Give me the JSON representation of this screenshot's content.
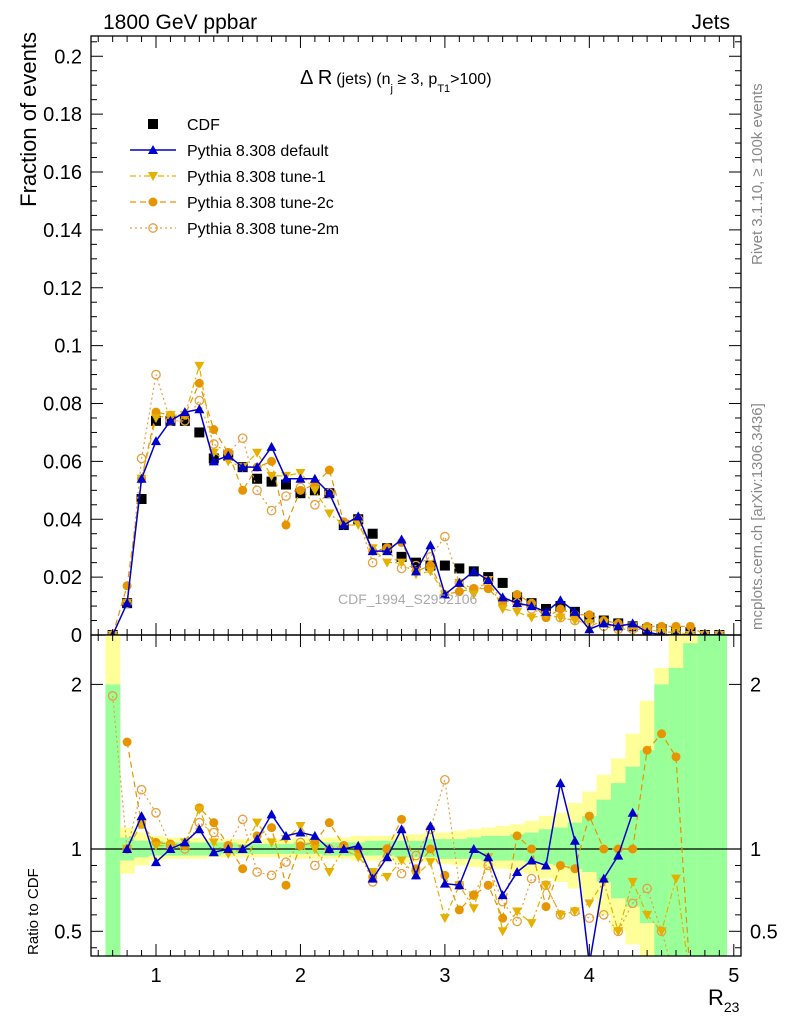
{
  "header": {
    "left": "1800 GeV ppbar",
    "right": "Jets"
  },
  "side_labels": {
    "rivet": "Rivet 3.1.10, ≥ 100k events",
    "mcplots": "mcplots.cern.ch [arXiv:1306.3436]"
  },
  "watermark": "CDF_1994_S2952106",
  "chart_data": {
    "type": "line",
    "title_main": "Δ R",
    "title_rest": "(jets) (n",
    "title_sub_j": "j",
    "title_mid": " ≥ 3, p",
    "title_sub_t": "T1",
    "title_end": ">100)",
    "xlabel_main": "R",
    "xlabel_sub": "23",
    "ylabel_top": "Fraction of events",
    "ylabel_bottom": "Ratio to CDF",
    "xlim": [
      0.55,
      5.05
    ],
    "ylim_top": [
      0,
      0.207
    ],
    "ylim_bottom": [
      0.35,
      2.3
    ],
    "x_ticks": [
      "1",
      "2",
      "3",
      "4",
      "5"
    ],
    "x_tick_values": [
      1,
      2,
      3,
      4,
      5
    ],
    "y_ticks_top": [
      "0",
      "0.02",
      "0.04",
      "0.06",
      "0.08",
      "0.1",
      "0.12",
      "0.14",
      "0.16",
      "0.18",
      "0.2"
    ],
    "y_tick_values_top": [
      0,
      0.02,
      0.04,
      0.06,
      0.08,
      0.1,
      0.12,
      0.14,
      0.16,
      0.18,
      0.2
    ],
    "y_ticks_bottom": [
      "0.5",
      "1",
      "2"
    ],
    "y_tick_values_bottom": [
      0.5,
      1,
      2
    ],
    "x": [
      0.7,
      0.8,
      0.9,
      1.0,
      1.1,
      1.2,
      1.3,
      1.4,
      1.5,
      1.6,
      1.7,
      1.8,
      1.9,
      2.0,
      2.1,
      2.2,
      2.3,
      2.4,
      2.5,
      2.6,
      2.7,
      2.8,
      2.9,
      3.0,
      3.1,
      3.2,
      3.3,
      3.4,
      3.5,
      3.6,
      3.7,
      3.8,
      3.9,
      4.0,
      4.1,
      4.2,
      4.3,
      4.4,
      4.5,
      4.6,
      4.7,
      4.8,
      4.9
    ],
    "legend": [
      "CDF",
      "Pythia 8.308 default",
      "Pythia 8.308 tune-1",
      "Pythia 8.308 tune-2c",
      "Pythia 8.308 tune-2m"
    ],
    "data": {
      "name": "CDF",
      "values": [
        0.0,
        0.011,
        0.047,
        0.074,
        0.074,
        0.074,
        0.07,
        0.061,
        0.062,
        0.058,
        0.054,
        0.053,
        0.052,
        0.049,
        0.05,
        0.049,
        0.038,
        0.04,
        0.035,
        0.03,
        0.027,
        0.025,
        0.024,
        0.024,
        0.023,
        0.022,
        0.02,
        0.018,
        0.013,
        0.011,
        0.009,
        0.01,
        0.008,
        0.006,
        0.005,
        0.004,
        0.003,
        0.002,
        0.002,
        0.001,
        0.001,
        0.0,
        0.0
      ]
    },
    "series": [
      {
        "name": "Pythia 8.308 default",
        "color": "#0000cc",
        "style": "solid",
        "marker": "triangle-up",
        "values": [
          0.0,
          0.011,
          0.054,
          0.067,
          0.074,
          0.077,
          0.078,
          0.06,
          0.062,
          0.058,
          0.058,
          0.065,
          0.054,
          0.054,
          0.054,
          0.049,
          0.038,
          0.041,
          0.029,
          0.029,
          0.033,
          0.022,
          0.031,
          0.014,
          0.018,
          0.022,
          0.019,
          0.013,
          0.011,
          0.01,
          0.008,
          0.012,
          0.008,
          0.002,
          0.004,
          0.003,
          0.004,
          0.001,
          0.0,
          0.0,
          0.0,
          0.0,
          0.0
        ],
        "ratio": [
          null,
          1.0,
          1.2,
          0.92,
          1.0,
          1.04,
          1.12,
          0.98,
          1.0,
          1.0,
          1.06,
          1.21,
          1.08,
          1.1,
          1.08,
          1.0,
          1.0,
          1.02,
          0.82,
          0.95,
          1.12,
          0.84,
          1.14,
          0.79,
          0.78,
          1.0,
          0.95,
          0.72,
          0.86,
          0.93,
          0.9,
          1.4,
          1.05,
          0.3,
          0.82,
          0.96,
          1.22,
          null,
          null,
          null,
          null,
          null,
          null
        ]
      },
      {
        "name": "Pythia 8.308 tune-1",
        "color": "#e6b000",
        "style": "dashdot",
        "marker": "triangle-down",
        "values": [
          0.0,
          0.011,
          0.054,
          0.075,
          0.076,
          0.076,
          0.093,
          0.063,
          0.06,
          0.058,
          0.063,
          0.055,
          0.055,
          0.056,
          0.05,
          0.042,
          0.038,
          0.038,
          0.03,
          0.025,
          0.025,
          0.021,
          0.022,
          0.014,
          0.018,
          0.014,
          0.019,
          0.009,
          0.008,
          0.006,
          0.007,
          0.006,
          0.005,
          0.004,
          0.004,
          0.002,
          0.003,
          0.002,
          0.001,
          0.001,
          0.0,
          0.0,
          0.0
        ],
        "ratio": [
          null,
          1.0,
          1.15,
          1.02,
          1.02,
          1.04,
          1.24,
          1.04,
          0.97,
          1.0,
          1.16,
          1.04,
          1.06,
          1.14,
          1.0,
          0.86,
          1.0,
          0.95,
          0.86,
          0.83,
          0.93,
          0.84,
          0.92,
          0.58,
          0.78,
          0.64,
          0.95,
          0.5,
          0.62,
          0.55,
          0.78,
          0.6,
          0.62,
          0.67,
          0.8,
          0.5,
          0.8,
          0.6,
          0.5,
          0.82,
          0.0,
          0.0,
          0.0
        ]
      },
      {
        "name": "Pythia 8.308 tune-2c",
        "color": "#e69500",
        "style": "dashed",
        "marker": "circle",
        "values": [
          0.0,
          0.017,
          0.054,
          0.077,
          0.076,
          0.076,
          0.087,
          0.071,
          0.063,
          0.05,
          0.058,
          0.06,
          0.038,
          0.05,
          0.052,
          0.057,
          0.039,
          0.04,
          0.029,
          0.03,
          0.032,
          0.022,
          0.024,
          0.014,
          0.015,
          0.016,
          0.016,
          0.011,
          0.014,
          0.011,
          0.006,
          0.009,
          0.007,
          0.007,
          0.005,
          0.004,
          0.003,
          0.003,
          0.003,
          0.003,
          0.003,
          0.0,
          0.0
        ],
        "ratio": [
          null,
          1.65,
          1.15,
          1.04,
          1.03,
          1.02,
          1.25,
          1.16,
          1.02,
          0.88,
          1.08,
          1.13,
          0.78,
          1.02,
          1.04,
          1.16,
          1.02,
          1.0,
          0.83,
          1.0,
          1.18,
          0.88,
          1.0,
          0.84,
          0.63,
          0.72,
          0.78,
          0.58,
          1.08,
          1.0,
          0.65,
          0.9,
          0.88,
          1.2,
          1.0,
          1.0,
          1.0,
          1.6,
          1.7,
          1.56,
          0.0,
          0.0,
          0.0
        ]
      },
      {
        "name": "Pythia 8.308 tune-2m",
        "color": "#e6a040",
        "style": "dotted",
        "marker": "open-circle",
        "values": [
          0.0,
          0.011,
          0.061,
          0.09,
          0.074,
          0.074,
          0.081,
          0.066,
          0.063,
          0.068,
          0.05,
          0.043,
          0.048,
          0.051,
          0.045,
          0.049,
          0.039,
          0.04,
          0.025,
          0.03,
          0.023,
          0.024,
          0.027,
          0.034,
          0.018,
          0.016,
          0.018,
          0.012,
          0.011,
          0.009,
          0.007,
          0.006,
          0.005,
          0.004,
          0.003,
          0.002,
          0.002,
          0.002,
          0.001,
          0.001,
          0.0,
          0.0,
          0.0
        ],
        "ratio": [
          1.93,
          1.0,
          1.36,
          1.22,
          1.02,
          1.0,
          1.16,
          1.1,
          1.02,
          1.18,
          0.86,
          0.84,
          0.92,
          1.04,
          0.9,
          1.0,
          1.02,
          1.0,
          0.8,
          1.0,
          0.85,
          0.96,
          1.12,
          1.42,
          0.78,
          0.72,
          0.9,
          0.68,
          0.56,
          0.82,
          0.78,
          0.6,
          0.62,
          0.58,
          0.6,
          0.5,
          0.67,
          0.76,
          0.5,
          0.0,
          0.0,
          0.0,
          0.0
        ]
      }
    ],
    "bands_bottom": {
      "edges": [
        0.65,
        0.75,
        0.85,
        0.95,
        1.05,
        1.15,
        1.25,
        1.35,
        1.45,
        1.55,
        1.65,
        1.75,
        1.85,
        1.95,
        2.05,
        2.15,
        2.25,
        2.35,
        2.45,
        2.55,
        2.65,
        2.75,
        2.85,
        2.95,
        3.05,
        3.15,
        3.25,
        3.35,
        3.45,
        3.55,
        3.65,
        3.75,
        3.85,
        3.95,
        4.05,
        4.15,
        4.25,
        4.35,
        4.45,
        4.55,
        4.65,
        4.75,
        4.85,
        4.95
      ],
      "green_lo": [
        0.3,
        0.93,
        0.95,
        0.96,
        0.96,
        0.96,
        0.96,
        0.96,
        0.97,
        0.97,
        0.97,
        0.97,
        0.97,
        0.97,
        0.97,
        0.96,
        0.96,
        0.96,
        0.96,
        0.96,
        0.95,
        0.95,
        0.95,
        0.94,
        0.94,
        0.94,
        0.93,
        0.93,
        0.93,
        0.92,
        0.91,
        0.9,
        0.88,
        0.86,
        0.8,
        0.7,
        0.65,
        0.55,
        0.35,
        0.3,
        0.3,
        0.3,
        0.3
      ],
      "green_hi": [
        2.0,
        1.07,
        1.05,
        1.05,
        1.04,
        1.04,
        1.04,
        1.04,
        1.04,
        1.03,
        1.03,
        1.03,
        1.03,
        1.04,
        1.04,
        1.04,
        1.04,
        1.04,
        1.05,
        1.05,
        1.05,
        1.05,
        1.06,
        1.06,
        1.06,
        1.07,
        1.08,
        1.08,
        1.09,
        1.1,
        1.12,
        1.13,
        1.16,
        1.2,
        1.3,
        1.4,
        1.5,
        1.6,
        2.0,
        2.1,
        2.25,
        2.3,
        2.3
      ],
      "yellow_lo": [
        0.3,
        0.85,
        0.9,
        0.93,
        0.94,
        0.94,
        0.94,
        0.95,
        0.95,
        0.95,
        0.95,
        0.95,
        0.95,
        0.94,
        0.94,
        0.94,
        0.94,
        0.93,
        0.93,
        0.93,
        0.92,
        0.92,
        0.92,
        0.91,
        0.9,
        0.89,
        0.88,
        0.88,
        0.86,
        0.85,
        0.82,
        0.8,
        0.76,
        0.7,
        0.6,
        0.5,
        0.42,
        0.35,
        0.3,
        0.3,
        0.3,
        0.3,
        0.3
      ],
      "yellow_hi": [
        2.3,
        1.13,
        1.1,
        1.08,
        1.07,
        1.07,
        1.07,
        1.06,
        1.06,
        1.06,
        1.06,
        1.06,
        1.06,
        1.07,
        1.07,
        1.07,
        1.07,
        1.08,
        1.08,
        1.08,
        1.09,
        1.09,
        1.1,
        1.1,
        1.11,
        1.12,
        1.13,
        1.14,
        1.15,
        1.17,
        1.2,
        1.22,
        1.28,
        1.35,
        1.45,
        1.55,
        1.7,
        1.9,
        2.1,
        2.3,
        2.3,
        2.3,
        2.3
      ]
    }
  }
}
